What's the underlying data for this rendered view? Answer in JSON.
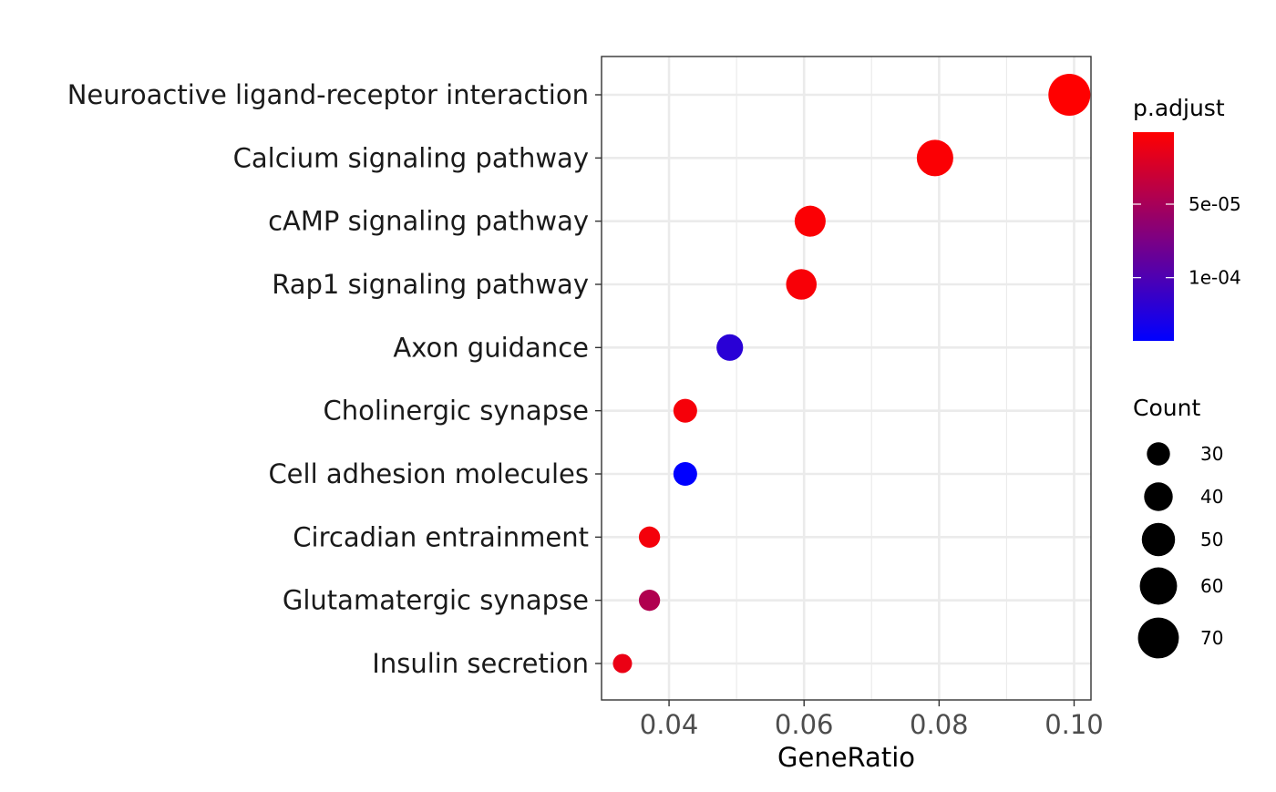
{
  "chart_data": {
    "type": "scatter",
    "title": "",
    "xlabel": "GeneRatio",
    "ylabel": "",
    "xlim": [
      0.03,
      0.1025
    ],
    "x_ticks": [
      0.04,
      0.06,
      0.08,
      0.1
    ],
    "x_tick_labels": [
      "0.04",
      "0.06",
      "0.08",
      "0.10"
    ],
    "grid": true,
    "legend_position": "right",
    "categories": [
      "Neuroactive ligand-receptor interaction",
      "Calcium signaling pathway",
      "cAMP signaling pathway",
      "Rap1 signaling pathway",
      "Axon guidance",
      "Cholinergic synapse",
      "Cell adhesion molecules",
      "Circadian entrainment",
      "Glutamatergic synapse",
      "Insulin secretion"
    ],
    "points": [
      {
        "category": "Neuroactive ligand-receptor interaction",
        "gene_ratio": 0.0993,
        "count": 73,
        "p_adjust": 1e-06
      },
      {
        "category": "Calcium signaling pathway",
        "gene_ratio": 0.0794,
        "count": 58,
        "p_adjust": 3e-06
      },
      {
        "category": "cAMP signaling pathway",
        "gene_ratio": 0.0609,
        "count": 45,
        "p_adjust": 3e-06
      },
      {
        "category": "Rap1 signaling pathway",
        "gene_ratio": 0.0596,
        "count": 44,
        "p_adjust": 5e-06
      },
      {
        "category": "Axon guidance",
        "gene_ratio": 0.049,
        "count": 36,
        "p_adjust": 0.00012
      },
      {
        "category": "Cholinergic synapse",
        "gene_ratio": 0.0424,
        "count": 31,
        "p_adjust": 6e-06
      },
      {
        "category": "Cell adhesion molecules",
        "gene_ratio": 0.0424,
        "count": 31,
        "p_adjust": 0.000143
      },
      {
        "category": "Circadian entrainment",
        "gene_ratio": 0.0371,
        "count": 27,
        "p_adjust": 7e-06
      },
      {
        "category": "Glutamatergic synapse",
        "gene_ratio": 0.0371,
        "count": 27,
        "p_adjust": 4.5e-05
      },
      {
        "category": "Insulin secretion",
        "gene_ratio": 0.0331,
        "count": 24,
        "p_adjust": 1.2e-05
      }
    ],
    "color_legend": {
      "title": "p.adjust",
      "low_color": "#ff0000",
      "high_color": "#0000ff",
      "range": [
        1e-06,
        0.000143
      ],
      "breaks": [
        5e-05,
        0.0001
      ],
      "break_labels": [
        "5e-05",
        "1e-04"
      ]
    },
    "size_legend": {
      "title": "Count",
      "breaks": [
        30,
        40,
        50,
        60,
        70
      ],
      "labels": [
        "30",
        "40",
        "50",
        "60",
        "70"
      ],
      "range": [
        24,
        73
      ],
      "color": "#000000"
    }
  }
}
